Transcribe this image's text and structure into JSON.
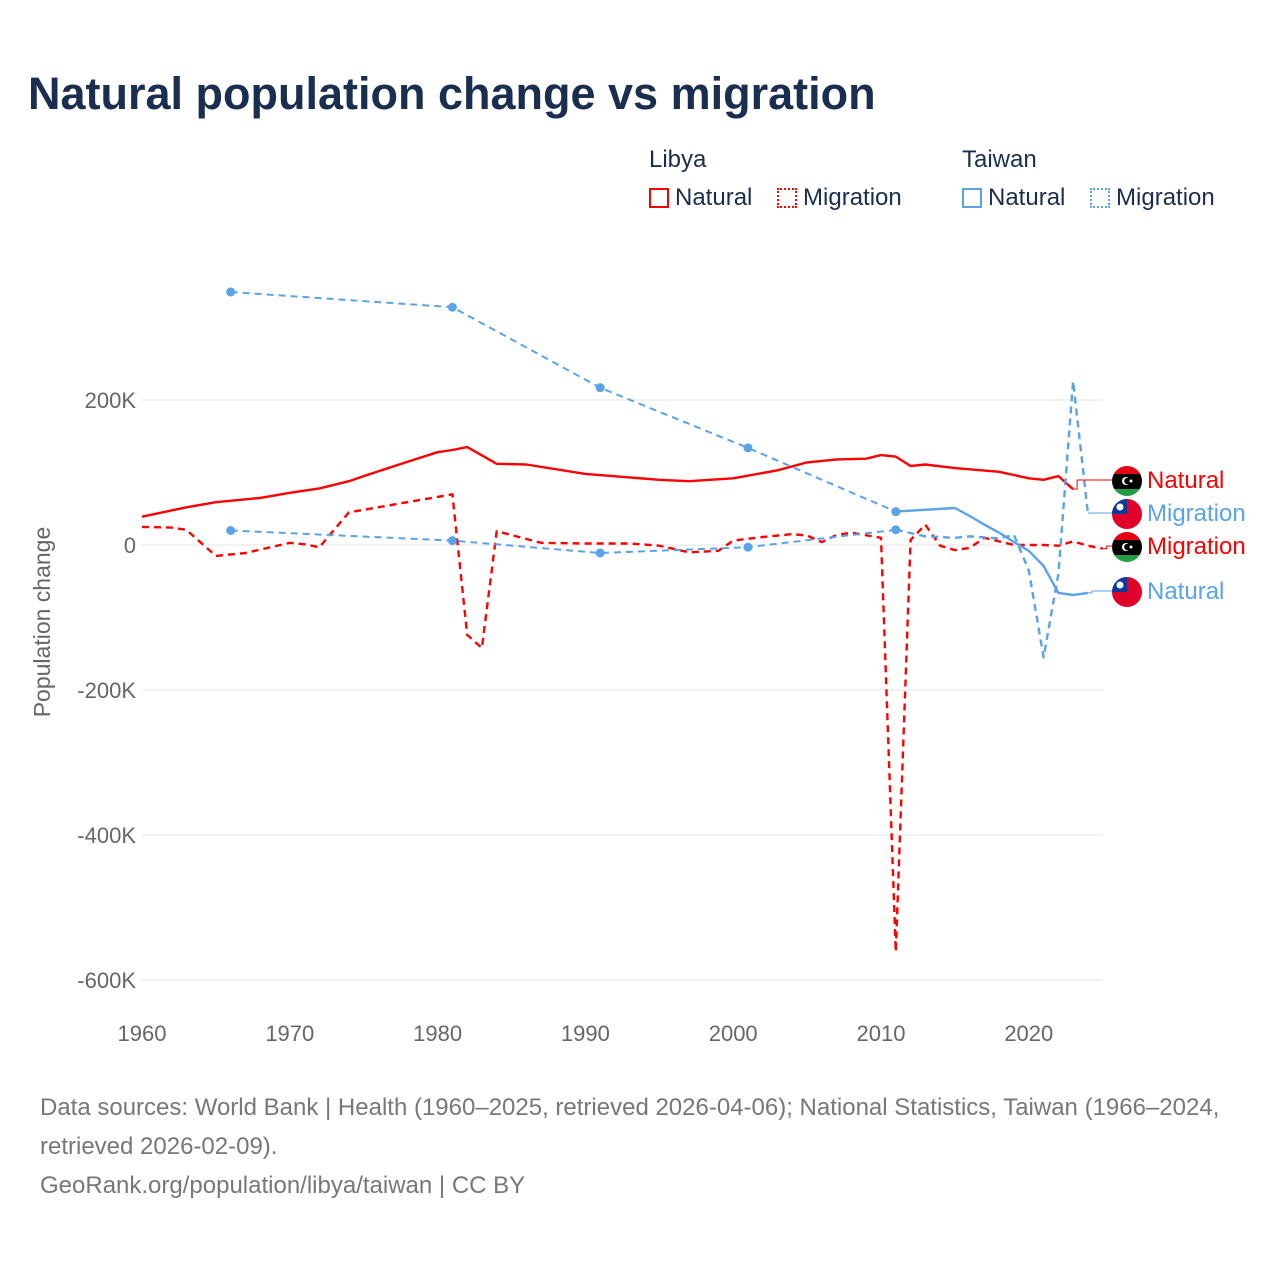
{
  "title": "Natural population change vs migration",
  "legend": {
    "groups": [
      {
        "name": "Libya",
        "color": "#ff0000",
        "items": [
          "Natural",
          "Migration"
        ]
      },
      {
        "name": "Taiwan",
        "color": "#5ba3e8",
        "items": [
          "Natural",
          "Migration"
        ]
      }
    ]
  },
  "chart_data": {
    "type": "line",
    "title": "Natural population change vs migration",
    "xlabel": "",
    "ylabel": "Population change",
    "xlim": [
      1960,
      2025
    ],
    "ylim": [
      -600000,
      380000
    ],
    "x_ticks": [
      1960,
      1970,
      1980,
      1990,
      2000,
      2010,
      2020
    ],
    "x_tick_labels": [
      "1960",
      "1970",
      "1980",
      "1990",
      "2000",
      "2010",
      "2020"
    ],
    "y_ticks": [
      200000,
      0,
      -200000,
      -400000,
      -600000
    ],
    "y_tick_labels": [
      "200K",
      "0",
      "-200K",
      "-400K",
      "-600K"
    ],
    "grid": true,
    "series": [
      {
        "name": "Libya Natural",
        "country": "Libya",
        "kind": "Natural",
        "color": "#ff0000",
        "style": "solid",
        "end_label": "Natural",
        "flag": "libya",
        "x": [
          1960,
          1963,
          1965,
          1968,
          1970,
          1972,
          1974,
          1975,
          1978,
          1980,
          1981,
          1982,
          1984,
          1986,
          1990,
          1995,
          1997,
          2000,
          2003,
          2005,
          2007,
          2009,
          2010,
          2011,
          2012,
          2013,
          2015,
          2018,
          2020,
          2021,
          2022,
          2023
        ],
        "y": [
          39000,
          52000,
          59000,
          65000,
          72000,
          78000,
          88000,
          95000,
          115000,
          128000,
          131000,
          135000,
          112000,
          111000,
          98000,
          90000,
          88000,
          92000,
          103000,
          114000,
          118000,
          119000,
          124000,
          122000,
          109000,
          111000,
          106000,
          101000,
          92000,
          90000,
          95000,
          77000
        ]
      },
      {
        "name": "Libya Migration",
        "country": "Libya",
        "kind": "Migration",
        "color": "#ff0000",
        "style": "dashed",
        "end_label": "Migration",
        "flag": "libya",
        "x": [
          1960,
          1962,
          1963,
          1965,
          1967,
          1970,
          1971,
          1972,
          1974,
          1981,
          1982,
          1983,
          1984,
          1987,
          1990,
          1993,
          1995,
          1997,
          1999,
          2000,
          2002,
          2004,
          2005,
          2006,
          2007,
          2008,
          2010,
          2011,
          2012,
          2013,
          2014,
          2015,
          2016,
          2017,
          2019,
          2021,
          2022,
          2023,
          2024,
          2025
        ],
        "y": [
          25000,
          24000,
          21000,
          -15000,
          -11000,
          3000,
          1000,
          -3000,
          45000,
          70000,
          -124000,
          -142000,
          19000,
          3000,
          2000,
          2000,
          -1000,
          -10000,
          -8000,
          6000,
          11000,
          15000,
          13000,
          4000,
          14000,
          17000,
          10000,
          -561000,
          7000,
          28000,
          -1000,
          -7000,
          -4000,
          10000,
          0,
          0,
          -1000,
          5000,
          -1000,
          -5000
        ]
      },
      {
        "name": "Taiwan Natural",
        "country": "Taiwan",
        "kind": "Natural",
        "color": "#5ba3e8",
        "style": "solid",
        "sparse_until": 2011,
        "end_label": "Natural",
        "flag": "taiwan",
        "x": [
          1966,
          1981,
          1991,
          2001,
          2011,
          2015,
          2016,
          2017,
          2018,
          2019,
          2020,
          2021,
          2022,
          2023,
          2024
        ],
        "y": [
          349000,
          328000,
          217000,
          134000,
          46000,
          51000,
          40000,
          28000,
          17000,
          4000,
          -8000,
          -29000,
          -66000,
          -69000,
          -66000
        ]
      },
      {
        "name": "Taiwan Migration",
        "country": "Taiwan",
        "kind": "Migration",
        "color": "#5ba3e8",
        "style": "dashed",
        "sparse_until": 2011,
        "end_label": "Migration",
        "flag": "taiwan",
        "x": [
          1966,
          1981,
          1991,
          2001,
          2011,
          2013,
          2015,
          2016,
          2018,
          2019,
          2020,
          2021,
          2022,
          2023,
          2024
        ],
        "y": [
          20000,
          6000,
          -11000,
          -3000,
          21000,
          12000,
          10000,
          12000,
          9000,
          14000,
          -35000,
          -155000,
          -40000,
          226000,
          44000
        ]
      }
    ]
  },
  "footer": {
    "line1": "Data sources: World Bank | Health (1960–2025, retrieved 2026-04-06); National Statistics, Taiwan (1966–2024, retrieved 2026-02-09).",
    "line2": "GeoRank.org/population/libya/taiwan | CC BY"
  }
}
